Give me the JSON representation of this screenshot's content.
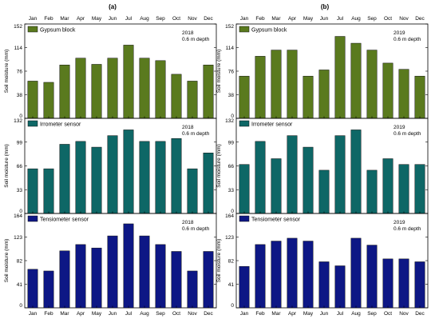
{
  "figure": {
    "months": [
      "Jan",
      "Feb",
      "Mar",
      "Apr",
      "May",
      "Jun",
      "Jul",
      "Aug",
      "Sep",
      "Oct",
      "Nov",
      "Dec"
    ],
    "ylabel": "Soil moisture (mm)"
  },
  "columns": [
    {
      "label": "(a)"
    },
    {
      "label": "(b)"
    }
  ],
  "chart_data": [
    {
      "type": "bar",
      "panel": "a-top",
      "categories": [
        "Jan",
        "Feb",
        "Mar",
        "Apr",
        "May",
        "Jun",
        "Jul",
        "Aug",
        "Sep",
        "Oct",
        "Nov",
        "Dec"
      ],
      "series": [
        {
          "name": "Gypsum block",
          "values": [
            60,
            58,
            86,
            97,
            87,
            97,
            118,
            97,
            93,
            71,
            60,
            86
          ]
        }
      ],
      "ylabel": "Soil moisture (mm)",
      "ylim": [
        0,
        152
      ],
      "yticks": [
        "0",
        "38",
        "76",
        "114",
        "152"
      ],
      "annotation": [
        "2018",
        "0.6 m depth"
      ],
      "color": "#5a7a1e",
      "legend": "top-left"
    },
    {
      "type": "bar",
      "panel": "a-middle",
      "categories": [
        "Jan",
        "Feb",
        "Mar",
        "Apr",
        "May",
        "Jun",
        "Jul",
        "Aug",
        "Sep",
        "Oct",
        "Nov",
        "Dec"
      ],
      "series": [
        {
          "name": "Irrometer sensor",
          "values": [
            62,
            62,
            96,
            100,
            92,
            108,
            116,
            100,
            100,
            104,
            62,
            84
          ]
        }
      ],
      "ylabel": "Soil moisture (mm)",
      "ylim": [
        0,
        132
      ],
      "yticks": [
        "0",
        "33",
        "66",
        "99",
        "132"
      ],
      "annotation": [
        "2018",
        "0.6 m depth"
      ],
      "color": "#0e6766",
      "legend": "top-left"
    },
    {
      "type": "bar",
      "panel": "a-bottom",
      "categories": [
        "Jan",
        "Feb",
        "Mar",
        "Apr",
        "May",
        "Jun",
        "Jul",
        "Aug",
        "Sep",
        "Oct",
        "Nov",
        "Dec"
      ],
      "series": [
        {
          "name": "Tensiometer sensor",
          "values": [
            67,
            64,
            99,
            110,
            104,
            125,
            146,
            125,
            110,
            98,
            64,
            98
          ]
        }
      ],
      "ylabel": "Soil moisture (mm)",
      "ylim": [
        0,
        164
      ],
      "yticks": [
        "0",
        "41",
        "82",
        "123",
        "164"
      ],
      "annotation": [
        "2018",
        "0.6 m depth"
      ],
      "color": "#0d1785",
      "legend": "top-left"
    },
    {
      "type": "bar",
      "panel": "b-top",
      "categories": [
        "Jan",
        "Feb",
        "Mar",
        "Apr",
        "May",
        "Jun",
        "Jul",
        "Aug",
        "Sep",
        "Oct",
        "Nov",
        "Dec"
      ],
      "series": [
        {
          "name": "Gypsum block",
          "values": [
            68,
            100,
            110,
            110,
            68,
            78,
            132,
            121,
            110,
            89,
            79,
            68
          ]
        }
      ],
      "ylabel": "Soil moisture (mm)",
      "ylim": [
        0,
        152
      ],
      "yticks": [
        "0",
        "38",
        "76",
        "114",
        "152"
      ],
      "annotation": [
        "2019",
        "0.6 m depth"
      ],
      "color": "#5a7a1e",
      "legend": "top-left"
    },
    {
      "type": "bar",
      "panel": "b-middle",
      "categories": [
        "Jan",
        "Feb",
        "Mar",
        "Apr",
        "May",
        "Jun",
        "Jul",
        "Aug",
        "Sep",
        "Oct",
        "Nov",
        "Dec"
      ],
      "series": [
        {
          "name": "Irrometer sensor",
          "values": [
            68,
            100,
            76,
            108,
            92,
            60,
            108,
            116,
            60,
            76,
            68,
            68
          ]
        }
      ],
      "ylabel": "Soil moisture (mm)",
      "ylim": [
        0,
        132
      ],
      "yticks": [
        "0",
        "33",
        "66",
        "99",
        "132"
      ],
      "annotation": [
        "2019",
        "0.6 m depth"
      ],
      "color": "#0e6766",
      "legend": "top-left"
    },
    {
      "type": "bar",
      "panel": "b-bottom",
      "categories": [
        "Jan",
        "Feb",
        "Mar",
        "Apr",
        "May",
        "Jun",
        "Jul",
        "Aug",
        "Sep",
        "Oct",
        "Nov",
        "Dec"
      ],
      "series": [
        {
          "name": "Tensiometer sensor",
          "values": [
            72,
            110,
            116,
            121,
            116,
            80,
            73,
            121,
            109,
            85,
            85,
            80
          ]
        }
      ],
      "ylabel": "Soil moisture (mm)",
      "ylim": [
        0,
        164
      ],
      "yticks": [
        "0",
        "41",
        "82",
        "123",
        "164"
      ],
      "annotation": [
        "2019",
        "0.6 m depth"
      ],
      "color": "#0d1785",
      "legend": "top-left"
    }
  ]
}
